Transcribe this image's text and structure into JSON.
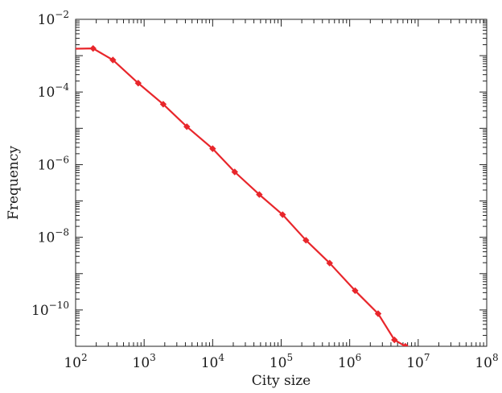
{
  "chart_data": {
    "type": "line",
    "title": "",
    "xlabel": "City size",
    "ylabel": "Frequency",
    "xscale": "log",
    "yscale": "log",
    "xlim": [
      100,
      100000000
    ],
    "ylim": [
      1e-11,
      0.01
    ],
    "grid": false,
    "legend": "none",
    "x_ticks": [
      {
        "base": "10",
        "exp": "2",
        "value": 100
      },
      {
        "base": "10",
        "exp": "3",
        "value": 1000
      },
      {
        "base": "10",
        "exp": "4",
        "value": 10000
      },
      {
        "base": "10",
        "exp": "5",
        "value": 100000
      },
      {
        "base": "10",
        "exp": "6",
        "value": 1000000
      },
      {
        "base": "10",
        "exp": "7",
        "value": 10000000
      },
      {
        "base": "10",
        "exp": "8",
        "value": 100000000
      }
    ],
    "y_ticks": [
      {
        "base": "10",
        "exp": "−2",
        "value": 0.01
      },
      {
        "base": "10",
        "exp": "−4",
        "value": 0.0001
      },
      {
        "base": "10",
        "exp": "−6",
        "value": 1e-06
      },
      {
        "base": "10",
        "exp": "−8",
        "value": 1e-08
      },
      {
        "base": "10",
        "exp": "−10",
        "value": 1e-10
      }
    ],
    "series": [
      {
        "color": "#e8262b",
        "marker": "diamond",
        "x": [
          100,
          180,
          350,
          820,
          1900,
          4200,
          10000,
          21000,
          48000,
          105000,
          230000,
          510000,
          1200000,
          2600000,
          4500000,
          6500000
        ],
        "y": [
          0.00155,
          0.00158,
          0.00076,
          0.000175,
          4.6e-05,
          1.11e-05,
          2.75e-06,
          6.3e-07,
          1.5e-07,
          4.2e-08,
          8.3e-09,
          1.95e-09,
          3.4e-10,
          7.9e-11,
          1.5e-11,
          1e-11
        ]
      }
    ]
  }
}
